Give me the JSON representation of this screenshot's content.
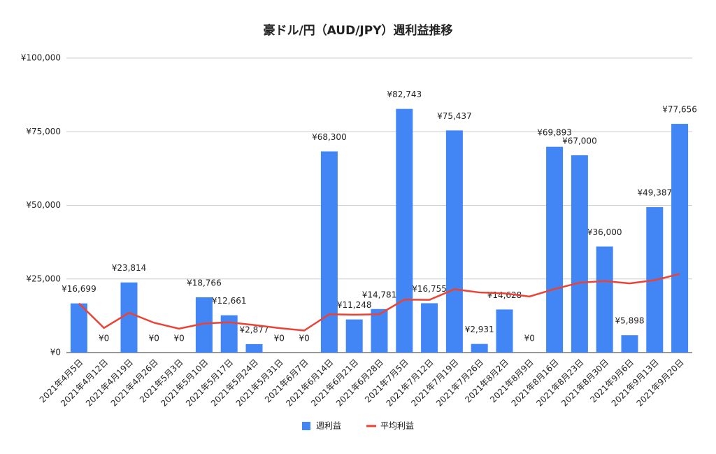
{
  "chart_data": {
    "type": "bar",
    "title": "豪ドル/円（AUD/JPY）週利益推移",
    "categories": [
      "2021年4月5日",
      "2021年4月12日",
      "2021年4月19日",
      "2021年4月26日",
      "2021年5月3日",
      "2021年5月10日",
      "2021年5月17日",
      "2021年5月24日",
      "2021年5月31日",
      "2021年6月7日",
      "2021年6月14日",
      "2021年6月21日",
      "2021年6月28日",
      "2021年7月5日",
      "2021年7月12日",
      "2021年7月19日",
      "2021年7月26日",
      "2021年8月2日",
      "2021年8月9日",
      "2021年8月16日",
      "2021年8月23日",
      "2021年8月30日",
      "2021年9月6日",
      "2021年9月13日",
      "2021年9月20日"
    ],
    "series": [
      {
        "name": "週利益",
        "type": "bar",
        "color": "#4285f4",
        "values": [
          16699,
          0,
          23814,
          0,
          0,
          18766,
          12661,
          2877,
          0,
          0,
          68300,
          11248,
          14781,
          82743,
          16755,
          75437,
          2931,
          14628,
          0,
          69893,
          67000,
          36000,
          5898,
          49387,
          77656
        ],
        "value_labels": [
          "¥16,699",
          "¥0",
          "¥23,814",
          "¥0",
          "¥0",
          "¥18,766",
          "¥12,661",
          "¥2,877",
          "¥0",
          "¥0",
          "¥68,300",
          "¥11,248",
          "¥14,781",
          "¥82,743",
          "¥16,755",
          "¥75,437",
          "¥2,931",
          "¥14,628",
          "¥0",
          "¥69,893",
          "¥67,000",
          "¥36,000",
          "¥5,898",
          "¥49,387",
          "¥77,656"
        ]
      },
      {
        "name": "平均利益",
        "type": "line",
        "color": "#ea4335",
        "values": [
          16699,
          8350,
          13504,
          10128,
          8103,
          9880,
          10277,
          9352,
          8313,
          7482,
          13011,
          12864,
          13011,
          17992,
          17910,
          21505,
          20412,
          20091,
          19034,
          21577,
          23740,
          24297,
          23497,
          24576,
          26699
        ]
      }
    ],
    "ylim": [
      0,
      100000
    ],
    "yticks": [
      {
        "value": 0,
        "label": "¥0"
      },
      {
        "value": 25000,
        "label": "¥25,000"
      },
      {
        "value": 50000,
        "label": "¥50,000"
      },
      {
        "value": 75000,
        "label": "¥75,000"
      },
      {
        "value": 100000,
        "label": "¥100,000"
      }
    ],
    "grid": true,
    "legend": "bottom"
  }
}
